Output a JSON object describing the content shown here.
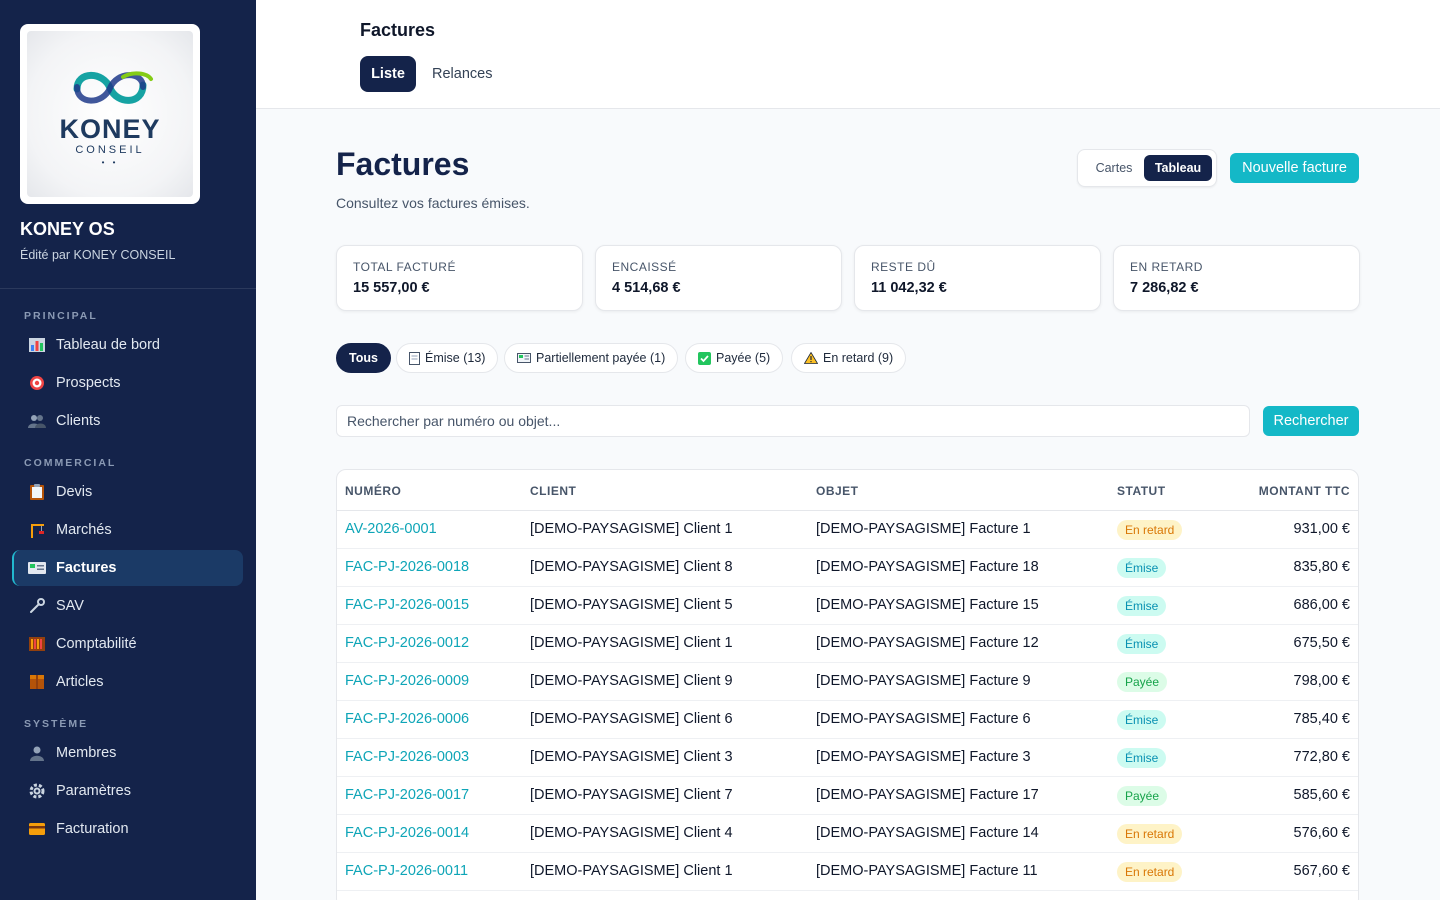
{
  "brand": {
    "logo_word": "KONEY",
    "logo_sub": "CONSEIL",
    "title": "KONEY OS",
    "subtitle": "Édité par KONEY CONSEIL"
  },
  "sidebar": {
    "sections": [
      {
        "label": "PRINCIPAL",
        "items": [
          {
            "label": "Tableau de bord",
            "icon": "bar-chart-icon"
          },
          {
            "label": "Prospects",
            "icon": "target-icon"
          },
          {
            "label": "Clients",
            "icon": "people-icon"
          }
        ]
      },
      {
        "label": "COMMERCIAL",
        "items": [
          {
            "label": "Devis",
            "icon": "clipboard-icon"
          },
          {
            "label": "Marchés",
            "icon": "crane-icon"
          },
          {
            "label": "Factures",
            "icon": "invoice-icon",
            "active": true
          },
          {
            "label": "SAV",
            "icon": "wrench-icon"
          },
          {
            "label": "Comptabilité",
            "icon": "abacus-icon"
          },
          {
            "label": "Articles",
            "icon": "box-icon"
          }
        ]
      },
      {
        "label": "SYSTÈME",
        "items": [
          {
            "label": "Membres",
            "icon": "person-icon"
          },
          {
            "label": "Paramètres",
            "icon": "gear-icon"
          },
          {
            "label": "Facturation",
            "icon": "credit-card-icon"
          }
        ]
      }
    ]
  },
  "header": {
    "title": "Factures",
    "tabs": [
      {
        "label": "Liste",
        "active": true
      },
      {
        "label": "Relances",
        "active": false
      }
    ]
  },
  "main": {
    "title": "Factures",
    "subtitle": "Consultez vos factures émises.",
    "view_toggle": {
      "cards": "Cartes",
      "table": "Tableau"
    },
    "new_button": "Nouvelle facture",
    "stats": [
      {
        "label": "TOTAL FACTURÉ",
        "value": "15 557,00 €"
      },
      {
        "label": "ENCAISSÉ",
        "value": "4 514,68 €"
      },
      {
        "label": "RESTE DÛ",
        "value": "11 042,32 €"
      },
      {
        "label": "EN RETARD",
        "value": "7 286,82 €"
      }
    ],
    "filters": [
      {
        "label": "Tous",
        "active": true
      },
      {
        "label": "Émise (13)",
        "icon": "document-icon"
      },
      {
        "label": "Partiellement payée (1)",
        "icon": "banknote-icon"
      },
      {
        "label": "Payée (5)",
        "icon": "check-box-icon"
      },
      {
        "label": "En retard (9)",
        "icon": "warning-icon"
      }
    ],
    "search": {
      "placeholder": "Rechercher par numéro ou objet...",
      "value": "",
      "button": "Rechercher"
    },
    "table": {
      "columns": [
        "NUMÉRO",
        "CLIENT",
        "OBJET",
        "STATUT",
        "MONTANT TTC"
      ],
      "rows": [
        {
          "numero": "AV-2026-0001",
          "client": "[DEMO-PAYSAGISME] Client 1",
          "objet": "[DEMO-PAYSAGISME] Facture 1",
          "statut": "En retard",
          "statut_kind": "late",
          "montant": "931,00 €"
        },
        {
          "numero": "FAC-PJ-2026-0018",
          "client": "[DEMO-PAYSAGISME] Client 8",
          "objet": "[DEMO-PAYSAGISME] Facture 18",
          "statut": "Émise",
          "statut_kind": "emise",
          "montant": "835,80 €"
        },
        {
          "numero": "FAC-PJ-2026-0015",
          "client": "[DEMO-PAYSAGISME] Client 5",
          "objet": "[DEMO-PAYSAGISME] Facture 15",
          "statut": "Émise",
          "statut_kind": "emise",
          "montant": "686,00 €"
        },
        {
          "numero": "FAC-PJ-2026-0012",
          "client": "[DEMO-PAYSAGISME] Client 1",
          "objet": "[DEMO-PAYSAGISME] Facture 12",
          "statut": "Émise",
          "statut_kind": "emise",
          "montant": "675,50 €"
        },
        {
          "numero": "FAC-PJ-2026-0009",
          "client": "[DEMO-PAYSAGISME] Client 9",
          "objet": "[DEMO-PAYSAGISME] Facture 9",
          "statut": "Payée",
          "statut_kind": "payee",
          "montant": "798,00 €"
        },
        {
          "numero": "FAC-PJ-2026-0006",
          "client": "[DEMO-PAYSAGISME] Client 6",
          "objet": "[DEMO-PAYSAGISME] Facture 6",
          "statut": "Émise",
          "statut_kind": "emise",
          "montant": "785,40 €"
        },
        {
          "numero": "FAC-PJ-2026-0003",
          "client": "[DEMO-PAYSAGISME] Client 3",
          "objet": "[DEMO-PAYSAGISME] Facture 3",
          "statut": "Émise",
          "statut_kind": "emise",
          "montant": "772,80 €"
        },
        {
          "numero": "FAC-PJ-2026-0017",
          "client": "[DEMO-PAYSAGISME] Client 7",
          "objet": "[DEMO-PAYSAGISME] Facture 17",
          "statut": "Payée",
          "statut_kind": "payee",
          "montant": "585,60 €"
        },
        {
          "numero": "FAC-PJ-2026-0014",
          "client": "[DEMO-PAYSAGISME] Client 4",
          "objet": "[DEMO-PAYSAGISME] Facture 14",
          "statut": "En retard",
          "statut_kind": "late",
          "montant": "576,60 €"
        },
        {
          "numero": "FAC-PJ-2026-0011",
          "client": "[DEMO-PAYSAGISME] Client 1",
          "objet": "[DEMO-PAYSAGISME] Facture 11",
          "statut": "En retard",
          "statut_kind": "late",
          "montant": "567,60 €"
        }
      ]
    }
  },
  "colors": {
    "sidebar_bg": "#14234a",
    "accent": "#14b8c7",
    "link": "#0ea5b7"
  }
}
